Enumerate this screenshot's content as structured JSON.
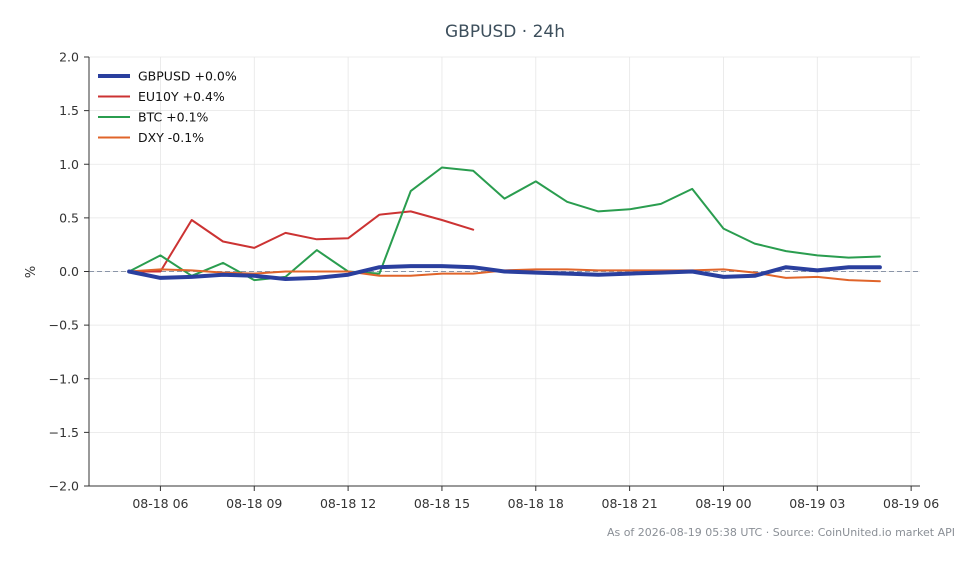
{
  "chart_data": {
    "type": "line",
    "title": "GBPUSD · 24h",
    "xlabel": "",
    "ylabel": "%",
    "ylim": [
      -2.0,
      2.0
    ],
    "xlim": [
      "2026-08-18 03:43",
      "2026-08-19 06:17"
    ],
    "yticks": [
      "2.0",
      "1.5",
      "1.0",
      "0.5",
      "0.0",
      "−0.5",
      "−1.0",
      "−1.5",
      "−2.0"
    ],
    "ytick_values": [
      2.0,
      1.5,
      1.0,
      0.5,
      0.0,
      -0.5,
      -1.0,
      -1.5,
      -2.0
    ],
    "xticks": [
      "08-18 06",
      "08-18 09",
      "08-18 12",
      "08-18 15",
      "08-18 18",
      "08-18 21",
      "08-19 00",
      "08-19 03",
      "08-19 06"
    ],
    "xtick_values": [
      "2026-08-18 06:00",
      "2026-08-18 09:00",
      "2026-08-18 12:00",
      "2026-08-18 15:00",
      "2026-08-18 18:00",
      "2026-08-18 21:00",
      "2026-08-19 00:00",
      "2026-08-19 03:00",
      "2026-08-19 06:00"
    ],
    "grid": true,
    "zero_line": true,
    "legend_position": "top-left",
    "series": [
      {
        "name": "GBPUSD +0.0%",
        "color": "#2a3f9e",
        "emphasis": "thick",
        "x": [
          "2026-08-18 05:00",
          "2026-08-18 06:00",
          "2026-08-18 07:00",
          "2026-08-18 08:00",
          "2026-08-18 09:00",
          "2026-08-18 10:00",
          "2026-08-18 11:00",
          "2026-08-18 12:00",
          "2026-08-18 13:00",
          "2026-08-18 14:00",
          "2026-08-18 15:00",
          "2026-08-18 16:00",
          "2026-08-18 17:00",
          "2026-08-18 18:00",
          "2026-08-18 19:00",
          "2026-08-18 20:00",
          "2026-08-18 21:00",
          "2026-08-18 22:00",
          "2026-08-18 23:00",
          "2026-08-19 00:00",
          "2026-08-19 01:00",
          "2026-08-19 02:00",
          "2026-08-19 03:00",
          "2026-08-19 04:00",
          "2026-08-19 05:00"
        ],
        "values": [
          0.0,
          -0.06,
          -0.05,
          -0.03,
          -0.04,
          -0.07,
          -0.06,
          -0.03,
          0.04,
          0.05,
          0.05,
          0.04,
          0.0,
          -0.01,
          -0.02,
          -0.03,
          -0.02,
          -0.01,
          0.0,
          -0.05,
          -0.04,
          0.04,
          0.01,
          0.04,
          0.04
        ]
      },
      {
        "name": "EU10Y +0.4%",
        "color": "#cc3333",
        "emphasis": "normal",
        "x": [
          "2026-08-18 05:00",
          "2026-08-18 06:00",
          "2026-08-18 07:00",
          "2026-08-18 08:00",
          "2026-08-18 09:00",
          "2026-08-18 10:00",
          "2026-08-18 11:00",
          "2026-08-18 12:00",
          "2026-08-18 13:00",
          "2026-08-18 14:00",
          "2026-08-18 15:00",
          "2026-08-18 16:00"
        ],
        "values": [
          0.0,
          0.0,
          0.48,
          0.28,
          0.22,
          0.36,
          0.3,
          0.31,
          0.53,
          0.56,
          0.48,
          0.39
        ]
      },
      {
        "name": "BTC +0.1%",
        "color": "#2a9d4f",
        "emphasis": "normal",
        "x": [
          "2026-08-18 05:00",
          "2026-08-18 06:00",
          "2026-08-18 07:00",
          "2026-08-18 08:00",
          "2026-08-18 09:00",
          "2026-08-18 10:00",
          "2026-08-18 11:00",
          "2026-08-18 12:00",
          "2026-08-18 13:00",
          "2026-08-18 14:00",
          "2026-08-18 15:00",
          "2026-08-18 16:00",
          "2026-08-18 17:00",
          "2026-08-18 18:00",
          "2026-08-18 19:00",
          "2026-08-18 20:00",
          "2026-08-18 21:00",
          "2026-08-18 22:00",
          "2026-08-18 23:00",
          "2026-08-19 00:00",
          "2026-08-19 01:00",
          "2026-08-19 02:00",
          "2026-08-19 03:00",
          "2026-08-19 04:00",
          "2026-08-19 05:00"
        ],
        "values": [
          0.0,
          0.15,
          -0.04,
          0.08,
          -0.08,
          -0.05,
          0.2,
          0.0,
          -0.02,
          0.75,
          0.97,
          0.94,
          0.68,
          0.84,
          0.65,
          0.56,
          0.58,
          0.63,
          0.77,
          0.4,
          0.26,
          0.19,
          0.15,
          0.13,
          0.14
        ]
      },
      {
        "name": "DXY -0.1%",
        "color": "#e0642a",
        "emphasis": "normal",
        "x": [
          "2026-08-18 05:00",
          "2026-08-18 06:00",
          "2026-08-18 07:00",
          "2026-08-18 08:00",
          "2026-08-18 09:00",
          "2026-08-18 10:00",
          "2026-08-18 11:00",
          "2026-08-18 12:00",
          "2026-08-18 13:00",
          "2026-08-18 14:00",
          "2026-08-18 15:00",
          "2026-08-18 16:00",
          "2026-08-18 17:00",
          "2026-08-18 18:00",
          "2026-08-18 19:00",
          "2026-08-18 20:00",
          "2026-08-18 21:00",
          "2026-08-18 22:00",
          "2026-08-18 23:00",
          "2026-08-19 00:00",
          "2026-08-19 01:00",
          "2026-08-19 02:00",
          "2026-08-19 03:00",
          "2026-08-19 04:00",
          "2026-08-19 05:00"
        ],
        "values": [
          0.0,
          0.02,
          0.01,
          -0.01,
          -0.02,
          0.0,
          0.0,
          0.0,
          -0.04,
          -0.04,
          -0.02,
          -0.02,
          0.01,
          0.02,
          0.02,
          0.01,
          0.01,
          0.01,
          0.01,
          0.02,
          -0.01,
          -0.06,
          -0.05,
          -0.08,
          -0.09
        ]
      }
    ]
  },
  "colors": {
    "axis": "#333333",
    "grid": "#e6e6e6",
    "zero_line": "#8a95a8",
    "title": "#3d4f5c"
  },
  "footer": "As of 2026-08-19 05:38 UTC · Source: CoinUnited.io market API"
}
